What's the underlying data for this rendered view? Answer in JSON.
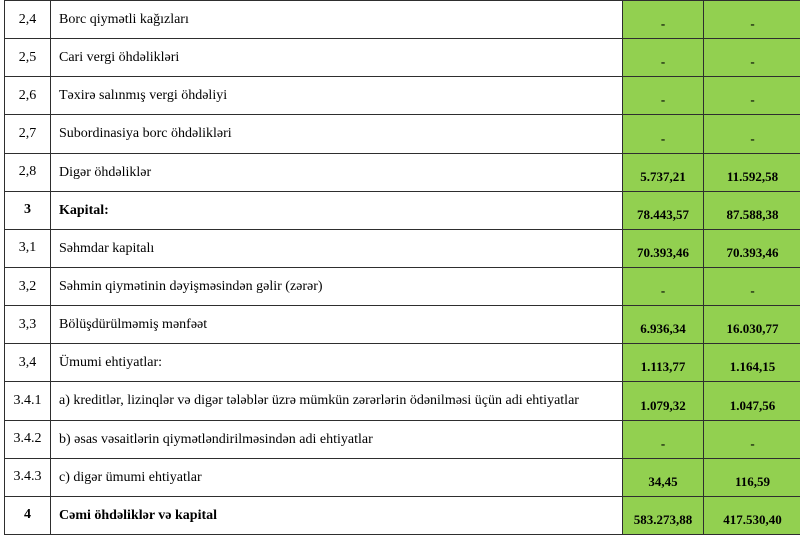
{
  "table": {
    "description": "Balance sheet fragment (liabilities and capital) in Azerbaijani",
    "colors": {
      "value_cell_green": "#92d050",
      "border": "#2e2e2e",
      "text": "#000000"
    },
    "rows": [
      {
        "num": "2,4",
        "label": "Borc qiymətli kağızları",
        "v1": "-",
        "v2": "-",
        "bold": false
      },
      {
        "num": "2,5",
        "label": "Cari vergi öhdəlikləri",
        "v1": "-",
        "v2": "-",
        "bold": false
      },
      {
        "num": "2,6",
        "label": "Təxirə salınmış vergi öhdəliyi",
        "v1": "-",
        "v2": "-",
        "bold": false
      },
      {
        "num": "2,7",
        "label": "Subordinasiya borc öhdəlikləri",
        "v1": "-",
        "v2": "-",
        "bold": false
      },
      {
        "num": "2,8",
        "label": "Digər öhdəliklər",
        "v1": "5.737,21",
        "v2": "11.592,58",
        "bold": false
      },
      {
        "num": "3",
        "label": "Kapital:",
        "v1": "78.443,57",
        "v2": "87.588,38",
        "bold": true
      },
      {
        "num": "3,1",
        "label": "Səhmdar kapitalı",
        "v1": "70.393,46",
        "v2": "70.393,46",
        "bold": false
      },
      {
        "num": "3,2",
        "label": "Səhmin qiymətinin dəyişməsindən gəlir (zərər)",
        "v1": "-",
        "v2": "-",
        "bold": false
      },
      {
        "num": "3,3",
        "label": "Bölüşdürülməmiş mənfəət",
        "v1": "6.936,34",
        "v2": "16.030,77",
        "bold": false
      },
      {
        "num": "3,4",
        "label": "Ümumi ehtiyatlar:",
        "v1": "1.113,77",
        "v2": "1.164,15",
        "bold": false
      },
      {
        "num": "3.4.1",
        "label": "a) kreditlər, lizinqlər və digər tələblər üzrə mümkün zərərlərin ödənilməsi üçün adi ehtiyatlar",
        "v1": "1.079,32",
        "v2": "1.047,56",
        "bold": false
      },
      {
        "num": "3.4.2",
        "label": "b) əsas vəsaitlərin qiymətləndirilməsindən adi ehtiyatlar",
        "v1": "-",
        "v2": "-",
        "bold": false
      },
      {
        "num": "3.4.3",
        "label": "c) digər ümumi ehtiyatlar",
        "v1": "34,45",
        "v2": "116,59",
        "bold": false
      },
      {
        "num": "4",
        "label": "Cəmi öhdəliklər və kapital",
        "v1": "583.273,88",
        "v2": "417.530,40",
        "bold": true
      }
    ]
  }
}
